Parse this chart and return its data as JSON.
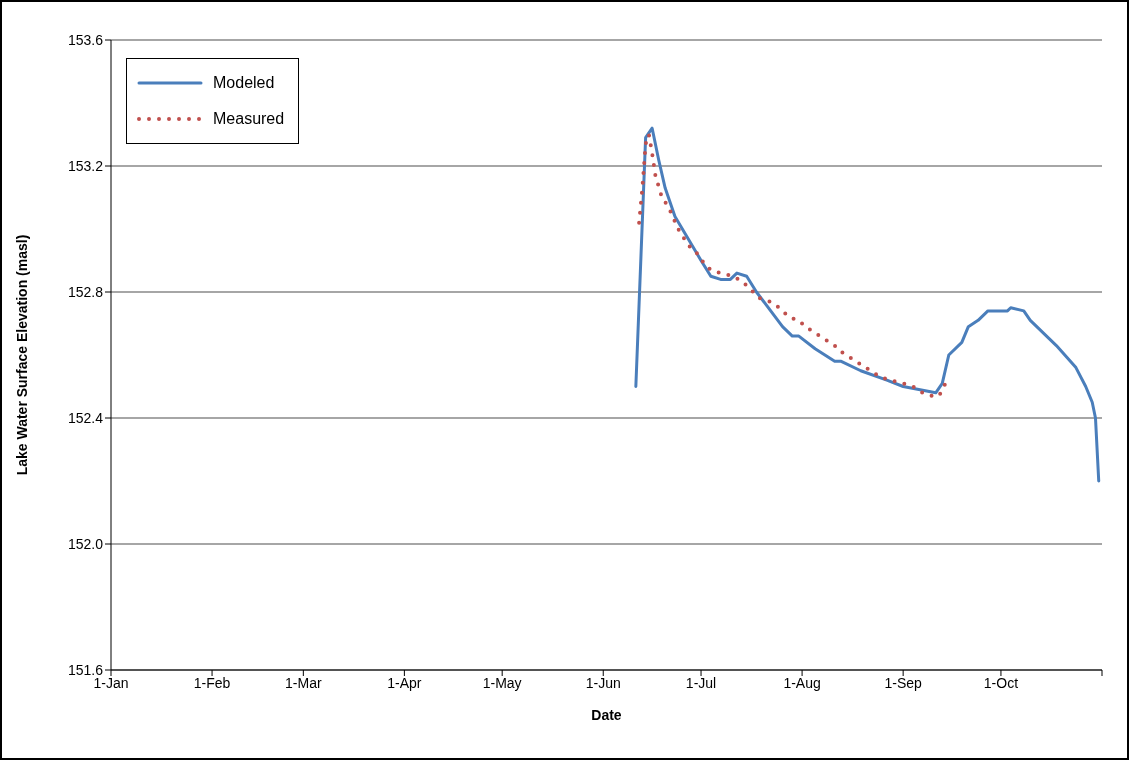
{
  "chart_data": {
    "type": "line",
    "xlabel": "Date",
    "ylabel": "Lake Water Surface Elevation (masl)",
    "xlim": [
      "--01-01",
      "--11-01"
    ],
    "xticks": [
      {
        "value": "--01-01",
        "label": "1-Jan"
      },
      {
        "value": "--02-01",
        "label": "1-Feb"
      },
      {
        "value": "--03-01",
        "label": "1-Mar"
      },
      {
        "value": "--04-01",
        "label": "1-Apr"
      },
      {
        "value": "--05-01",
        "label": "1-May"
      },
      {
        "value": "--06-01",
        "label": "1-Jun"
      },
      {
        "value": "--07-01",
        "label": "1-Jul"
      },
      {
        "value": "--08-01",
        "label": "1-Aug"
      },
      {
        "value": "--09-01",
        "label": "1-Sep"
      },
      {
        "value": "--10-01",
        "label": "1-Oct"
      },
      {
        "value": "--11-01",
        "label": null
      }
    ],
    "ylim": [
      151.6,
      153.6
    ],
    "yticks": [
      151.6,
      {
        "value": 152,
        "label": "152.0"
      },
      152.4,
      152.8,
      153.2,
      153.6
    ],
    "grid": "y",
    "legend": "top left",
    "marker": "none",
    "series": [
      {
        "name": "Modeled",
        "color": "#4a7ebb",
        "line_style": "solid",
        "x": [
          "--06-11",
          "--06-14",
          "--06-16",
          "--06-18",
          "--06-20",
          "--06-23",
          "--06-27",
          "--07-01",
          "--07-04",
          "--07-07",
          "--07-10",
          "--07-12",
          "--07-15",
          "--07-18",
          "--07-26",
          "--07-29",
          "--07-31",
          "--08-05",
          "--08-11",
          "--08-13",
          "--08-19",
          "--08-27",
          "--09-01",
          "--09-11",
          "--09-13",
          "--09-15",
          "--09-19",
          "--09-21",
          "--09-24",
          "--09-27",
          "--09-30",
          "--10-03",
          "--10-04",
          "--10-08",
          "--10-10",
          "--10-18",
          "--10-24",
          "--10-27",
          "--10-29",
          "--10-30",
          "--10-31"
        ],
        "values": [
          152.5,
          153.29,
          153.32,
          153.22,
          153.13,
          153.04,
          152.97,
          152.9,
          152.85,
          152.84,
          152.84,
          152.86,
          152.85,
          152.8,
          152.69,
          152.66,
          152.66,
          152.62,
          152.58,
          152.58,
          152.55,
          152.52,
          152.5,
          152.48,
          152.51,
          152.6,
          152.64,
          152.69,
          152.71,
          152.74,
          152.74,
          152.74,
          152.75,
          152.74,
          152.71,
          152.63,
          152.56,
          152.5,
          152.45,
          152.4,
          152.2
        ]
      },
      {
        "name": "Measured",
        "color": "#c0504d",
        "line_style": "dotted",
        "x": [
          "--06-12",
          "--06-13",
          "--06-14",
          "--06-15",
          "--06-16",
          "--06-17",
          "--06-19",
          "--06-21",
          "--06-24",
          "--06-27",
          "--06-30",
          "--07-02",
          "--07-04",
          "--07-07",
          "--07-11",
          "--07-14",
          "--07-16",
          "--07-19",
          "--07-22",
          "--07-25",
          "--07-28",
          "--07-31",
          "--08-02",
          "--08-05",
          "--08-08",
          "--08-11",
          "--08-13",
          "--08-16",
          "--08-19",
          "--08-22",
          "--08-25",
          "--08-28",
          "--09-01",
          "--09-04",
          "--09-07",
          "--09-10",
          "--09-12",
          "--09-14"
        ],
        "values": [
          153.02,
          153.13,
          153.27,
          153.3,
          153.24,
          153.17,
          153.1,
          153.07,
          153.0,
          152.95,
          152.92,
          152.89,
          152.87,
          152.86,
          152.85,
          152.83,
          152.81,
          152.78,
          152.77,
          152.75,
          152.72,
          152.71,
          152.69,
          152.67,
          152.65,
          152.63,
          152.61,
          152.59,
          152.57,
          152.55,
          152.53,
          152.52,
          152.51,
          152.5,
          152.48,
          152.47,
          152.47,
          152.51
        ]
      }
    ]
  }
}
